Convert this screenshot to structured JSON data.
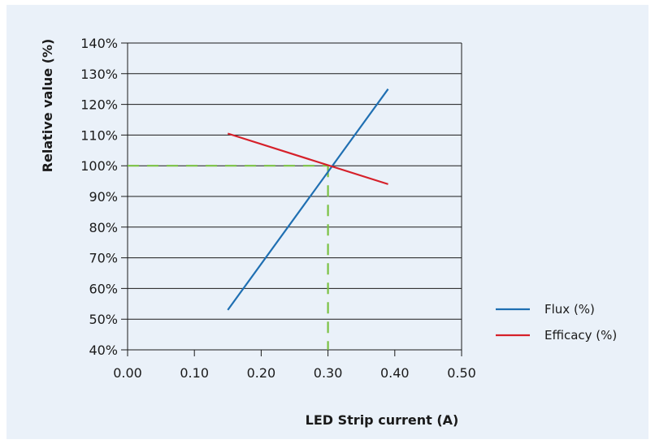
{
  "chart_data": {
    "type": "line",
    "title": "",
    "xlabel": "LED Strip current (A)",
    "ylabel": "Relative value (%)",
    "xlim": [
      0.0,
      0.5
    ],
    "ylim": [
      40,
      140
    ],
    "x_ticks": [
      "0.00",
      "0.10",
      "0.20",
      "0.30",
      "0.40",
      "0.50"
    ],
    "y_ticks": [
      "40%",
      "50%",
      "60%",
      "70%",
      "80%",
      "90%",
      "100%",
      "110%",
      "120%",
      "130%",
      "140%"
    ],
    "grid": "horizontal",
    "legend_position": "right",
    "series": [
      {
        "name": "Flux (%)",
        "color": "#1f6fb2",
        "x": [
          0.15,
          0.39
        ],
        "y": [
          53,
          125
        ]
      },
      {
        "name": "Efficacy (%)",
        "color": "#d6202a",
        "x": [
          0.15,
          0.39
        ],
        "y": [
          110.5,
          94
        ]
      }
    ],
    "reference_lines": {
      "color": "#7ac143",
      "style": "dashed",
      "x": 0.3,
      "y": 100
    }
  }
}
